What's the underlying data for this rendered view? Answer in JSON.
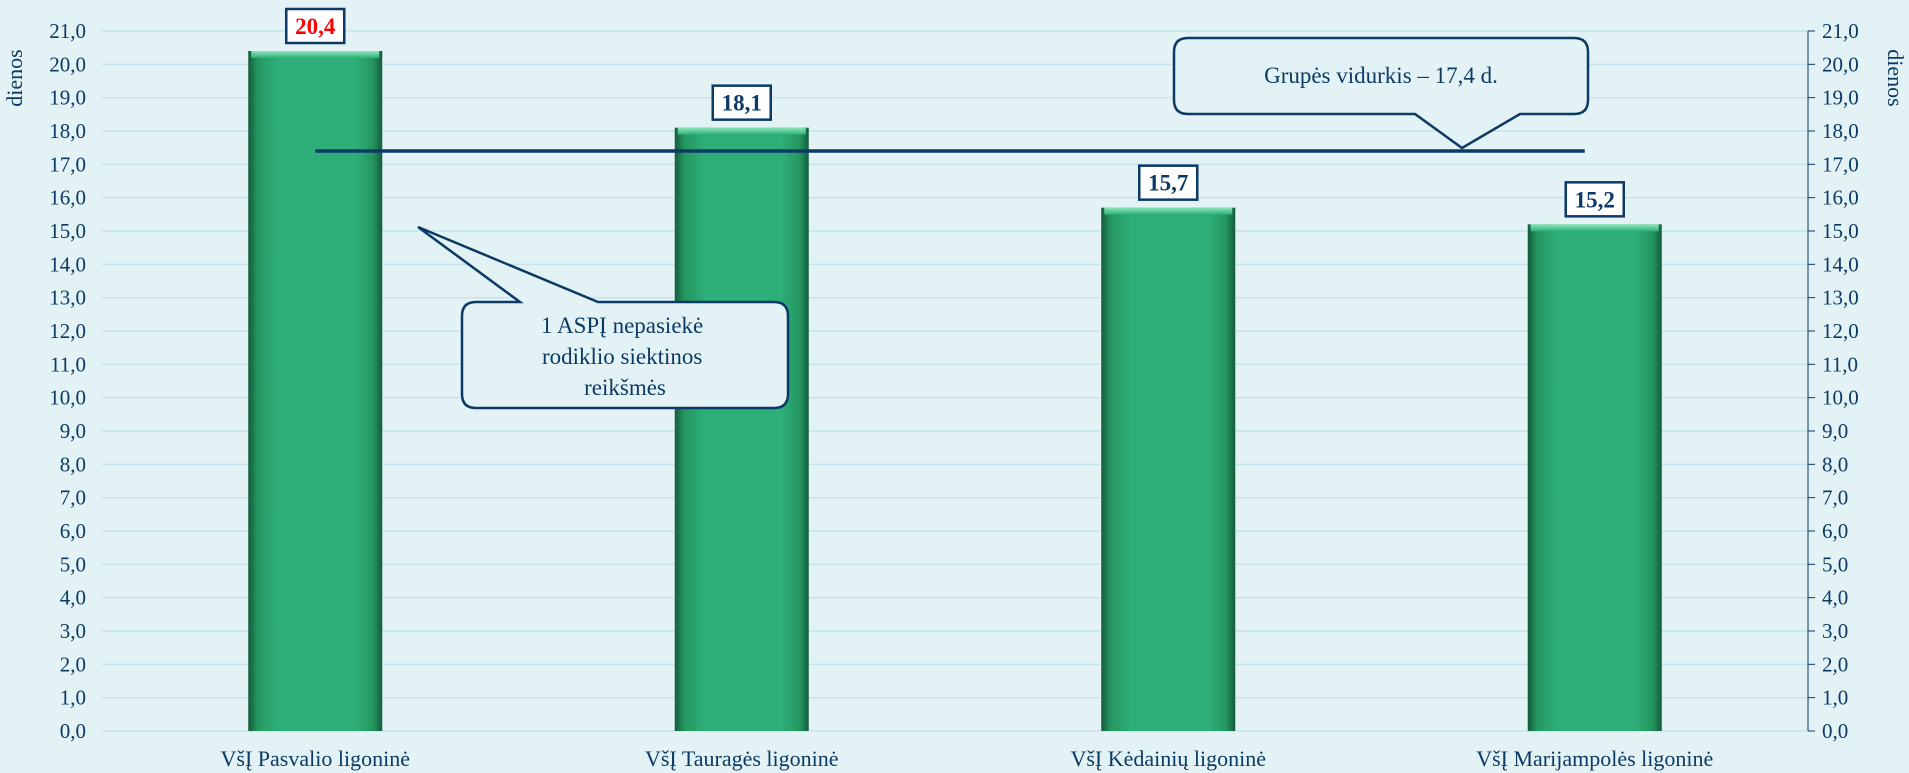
{
  "chart_data": {
    "type": "bar",
    "categories": [
      "VšĮ Pasvalio ligoninė",
      "VšĮ Tauragės ligoninė",
      "VšĮ Kėdainių ligoninė",
      "VšĮ Marijampolės ligoninė"
    ],
    "values": [
      20.4,
      18.1,
      15.7,
      15.2
    ],
    "value_labels": [
      "20,4",
      "18,1",
      "15,7",
      "15,2"
    ],
    "value_label_colors": [
      "#ff0000",
      "#0b3a66",
      "#0b3a66",
      "#0b3a66"
    ],
    "ylabel": "dienos",
    "ylabel_right": "dienos",
    "ylim": [
      0,
      21
    ],
    "ytick_step": 1,
    "yticks": [
      "0,0",
      "1,0",
      "2,0",
      "3,0",
      "4,0",
      "5,0",
      "6,0",
      "7,0",
      "8,0",
      "9,0",
      "10,0",
      "11,0",
      "12,0",
      "13,0",
      "14,0",
      "15,0",
      "16,0",
      "17,0",
      "18,0",
      "19,0",
      "20,0",
      "21,0"
    ],
    "grid": true,
    "reference_line": {
      "value": 17.4
    },
    "annotations": {
      "average": "Grupės vidurkis – 17,4 d.",
      "not_reached": [
        "1 ASPĮ nepasiekė",
        "rodiklio siektinos",
        "reikšmės"
      ]
    },
    "colors": {
      "bar": "#2eae78",
      "bar_dark": "#145c3c",
      "bar_light": "#6fd9a8",
      "text": "#0b3a66",
      "grid": "#c6e3ec",
      "line": "#0b3a66",
      "highlight": "#ff0000",
      "background": "#e3f2f4"
    }
  }
}
